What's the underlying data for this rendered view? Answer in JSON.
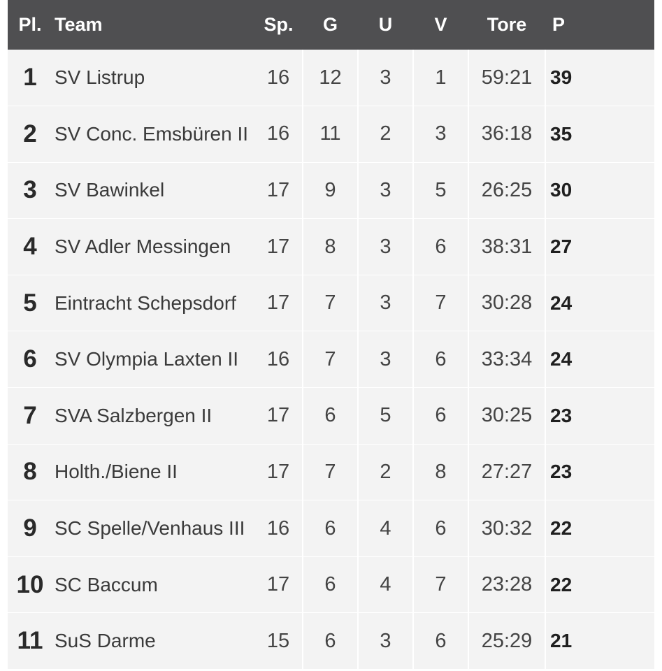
{
  "header": {
    "pl": "Pl.",
    "team": "Team",
    "sp": "Sp.",
    "g": "G",
    "u": "U",
    "v": "V",
    "tore": "Tore",
    "p": "P"
  },
  "rows": [
    {
      "pl": "1",
      "team": "SV Listrup",
      "sp": "16",
      "g": "12",
      "u": "3",
      "v": "1",
      "tore": "59:21",
      "p": "39"
    },
    {
      "pl": "2",
      "team": "SV Conc. Emsbüren II",
      "sp": "16",
      "g": "11",
      "u": "2",
      "v": "3",
      "tore": "36:18",
      "p": "35"
    },
    {
      "pl": "3",
      "team": "SV Bawinkel",
      "sp": "17",
      "g": "9",
      "u": "3",
      "v": "5",
      "tore": "26:25",
      "p": "30"
    },
    {
      "pl": "4",
      "team": "SV Adler Messingen",
      "sp": "17",
      "g": "8",
      "u": "3",
      "v": "6",
      "tore": "38:31",
      "p": "27"
    },
    {
      "pl": "5",
      "team": "Eintracht Schepsdorf",
      "sp": "17",
      "g": "7",
      "u": "3",
      "v": "7",
      "tore": "30:28",
      "p": "24"
    },
    {
      "pl": "6",
      "team": "SV Olympia Laxten II",
      "sp": "16",
      "g": "7",
      "u": "3",
      "v": "6",
      "tore": "33:34",
      "p": "24"
    },
    {
      "pl": "7",
      "team": "SVA Salzbergen II",
      "sp": "17",
      "g": "6",
      "u": "5",
      "v": "6",
      "tore": "30:25",
      "p": "23"
    },
    {
      "pl": "8",
      "team": "Holth./Biene II",
      "sp": "17",
      "g": "7",
      "u": "2",
      "v": "8",
      "tore": "27:27",
      "p": "23"
    },
    {
      "pl": "9",
      "team": "SC Spelle/Venhaus III",
      "sp": "16",
      "g": "6",
      "u": "4",
      "v": "6",
      "tore": "30:32",
      "p": "22"
    },
    {
      "pl": "10",
      "team": "SC Baccum",
      "sp": "17",
      "g": "6",
      "u": "4",
      "v": "7",
      "tore": "23:28",
      "p": "22"
    },
    {
      "pl": "11",
      "team": "SuS Darme",
      "sp": "15",
      "g": "6",
      "u": "3",
      "v": "6",
      "tore": "25:29",
      "p": "21"
    }
  ]
}
